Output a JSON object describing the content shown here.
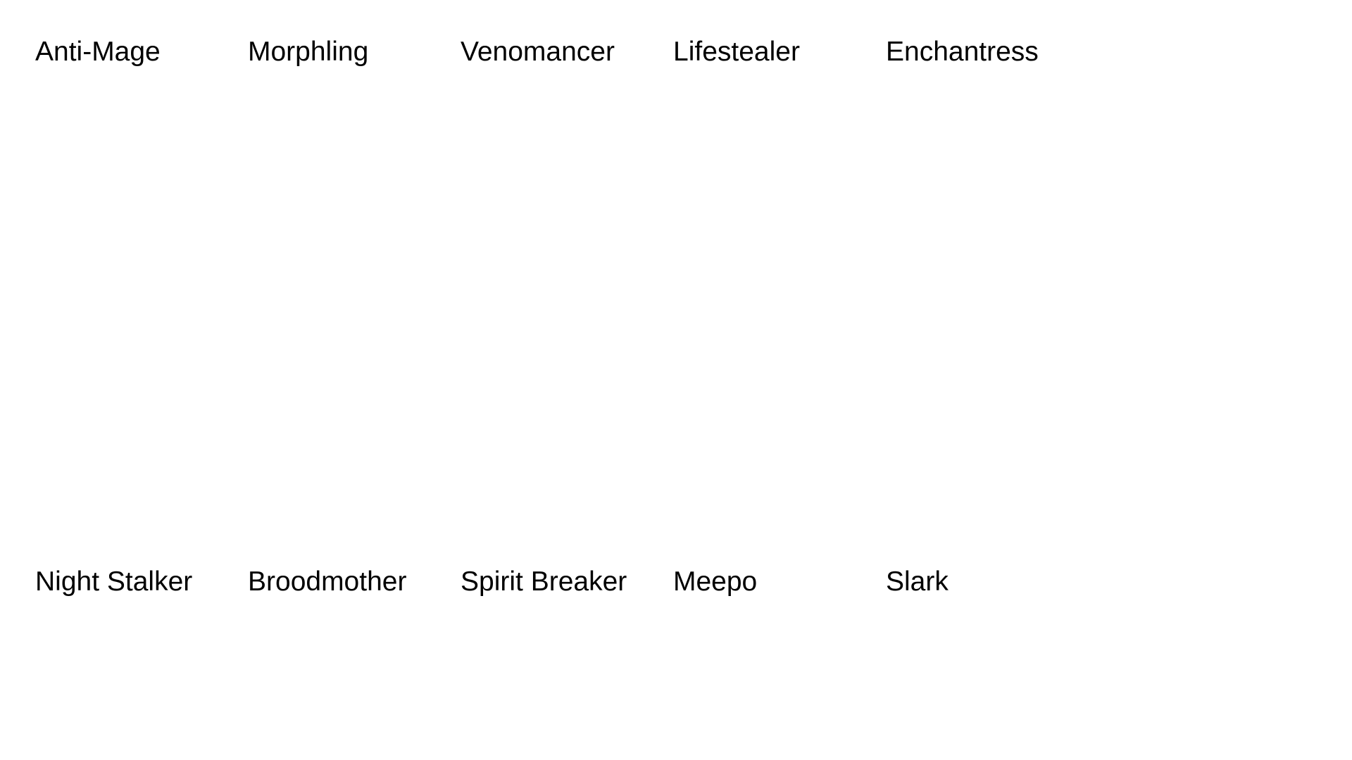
{
  "rows": [
    {
      "heroes": [
        "Anti-Mage",
        "Morphling",
        "Venomancer",
        "Lifestealer",
        "Enchantress"
      ]
    },
    {
      "heroes": [
        "Night Stalker",
        "Broodmother",
        "Spirit Breaker",
        "Meepo",
        "Slark"
      ]
    }
  ]
}
